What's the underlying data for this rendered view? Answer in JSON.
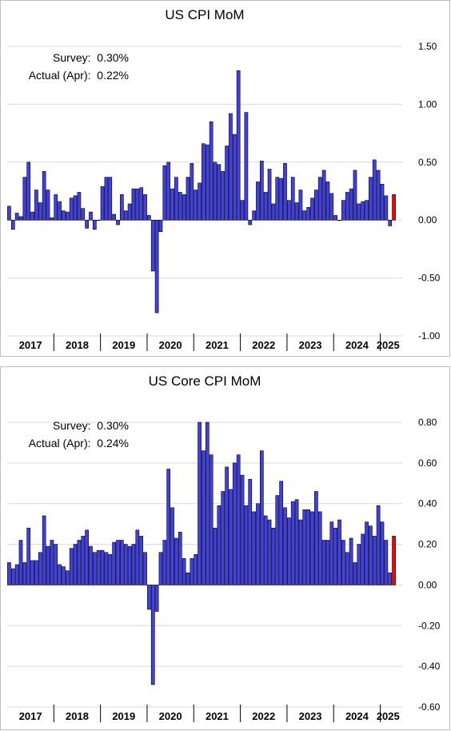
{
  "charts": [
    {
      "id": "cpi",
      "survey_label": "Survey:",
      "survey_value": "0.30%",
      "actual_label": "Actual (Apr):",
      "actual_value": "0.22%"
    },
    {
      "id": "core",
      "survey_label": "Survey:",
      "survey_value": "0.30%",
      "actual_label": "Actual (Apr):",
      "actual_value": "0.24%"
    }
  ],
  "chart_data": [
    {
      "type": "bar",
      "title": "US CPI MoM",
      "xlabel": "",
      "ylabel": "",
      "ylim": [
        -1.0,
        1.5
      ],
      "yticks": [
        1.5,
        1.0,
        0.5,
        0.0,
        -0.5,
        -1.0
      ],
      "ytick_labels": [
        "1.50",
        "1.00",
        "0.50",
        "0.00",
        "-0.50",
        "-1.00"
      ],
      "grid": "horizontal",
      "years": [
        "2017",
        "2018",
        "2019",
        "2020",
        "2021",
        "2022",
        "2023",
        "2024",
        "2025"
      ],
      "months_per_year": [
        12,
        12,
        12,
        12,
        12,
        12,
        12,
        12,
        4
      ],
      "colors": {
        "bar": "#4040e6",
        "latest": "#ff0000",
        "edge": "#000000"
      },
      "values": [
        0.12,
        -0.08,
        0.06,
        0.03,
        0.37,
        0.5,
        0.07,
        0.26,
        0.15,
        0.42,
        0.26,
        0.02,
        0.22,
        0.16,
        0.08,
        0.07,
        0.19,
        0.21,
        0.24,
        0.1,
        -0.07,
        0.07,
        -0.08,
        0.0,
        0.29,
        0.37,
        0.37,
        0.05,
        -0.04,
        0.22,
        0.08,
        0.14,
        0.27,
        0.27,
        0.28,
        0.22,
        0.04,
        -0.44,
        -0.8,
        -0.1,
        0.47,
        0.5,
        0.27,
        0.37,
        0.24,
        0.22,
        0.37,
        0.49,
        0.26,
        0.32,
        0.66,
        0.65,
        0.85,
        0.5,
        0.48,
        0.42,
        0.64,
        0.92,
        0.74,
        1.29,
        0.17,
        0.93,
        -0.04,
        0.08,
        0.33,
        0.51,
        0.24,
        0.44,
        0.14,
        0.37,
        0.36,
        0.49,
        0.17,
        0.37,
        0.15,
        0.26,
        0.08,
        0.11,
        0.19,
        0.26,
        0.37,
        0.43,
        0.33,
        0.23,
        0.04,
        0.0,
        0.17,
        0.24,
        0.27,
        0.43,
        0.14,
        0.16,
        0.17,
        0.37,
        0.52,
        0.43,
        0.31,
        0.21,
        -0.05,
        0.22
      ]
    },
    {
      "type": "bar",
      "title": "US Core CPI MoM",
      "xlabel": "",
      "ylabel": "",
      "ylim": [
        -0.6,
        0.8
      ],
      "yticks": [
        0.8,
        0.6,
        0.4,
        0.2,
        0.0,
        -0.2,
        -0.4,
        -0.6
      ],
      "ytick_labels": [
        "0.80",
        "0.60",
        "0.40",
        "0.20",
        "0.00",
        "-0.20",
        "-0.40",
        "-0.60"
      ],
      "grid": "horizontal",
      "years": [
        "2017",
        "2018",
        "2019",
        "2020",
        "2021",
        "2022",
        "2023",
        "2024",
        "2025"
      ],
      "months_per_year": [
        12,
        12,
        12,
        12,
        12,
        12,
        12,
        12,
        4
      ],
      "colors": {
        "bar": "#4040e6",
        "latest": "#ff0000",
        "edge": "#000000"
      },
      "values": [
        0.11,
        0.08,
        0.1,
        0.22,
        0.11,
        0.28,
        0.12,
        0.12,
        0.16,
        0.34,
        0.19,
        0.22,
        0.2,
        0.1,
        0.09,
        0.07,
        0.18,
        0.2,
        0.22,
        0.24,
        0.27,
        0.19,
        0.16,
        0.17,
        0.17,
        0.16,
        0.15,
        0.21,
        0.22,
        0.22,
        0.2,
        0.19,
        0.2,
        0.27,
        0.24,
        0.16,
        -0.12,
        -0.49,
        -0.13,
        0.16,
        0.22,
        0.57,
        0.38,
        0.23,
        0.26,
        0.13,
        0.06,
        0.13,
        0.15,
        0.8,
        0.66,
        0.8,
        0.64,
        0.28,
        0.39,
        0.46,
        0.58,
        0.47,
        0.6,
        0.64,
        0.54,
        0.39,
        0.52,
        0.36,
        0.4,
        0.66,
        0.34,
        0.32,
        0.28,
        0.44,
        0.51,
        0.38,
        0.33,
        0.41,
        0.42,
        0.32,
        0.37,
        0.37,
        0.36,
        0.46,
        0.36,
        0.22,
        0.22,
        0.31,
        0.28,
        0.32,
        0.22,
        0.16,
        0.23,
        0.11,
        0.2,
        0.25,
        0.31,
        0.29,
        0.24,
        0.39,
        0.31,
        0.22,
        0.06,
        0.24
      ]
    }
  ]
}
